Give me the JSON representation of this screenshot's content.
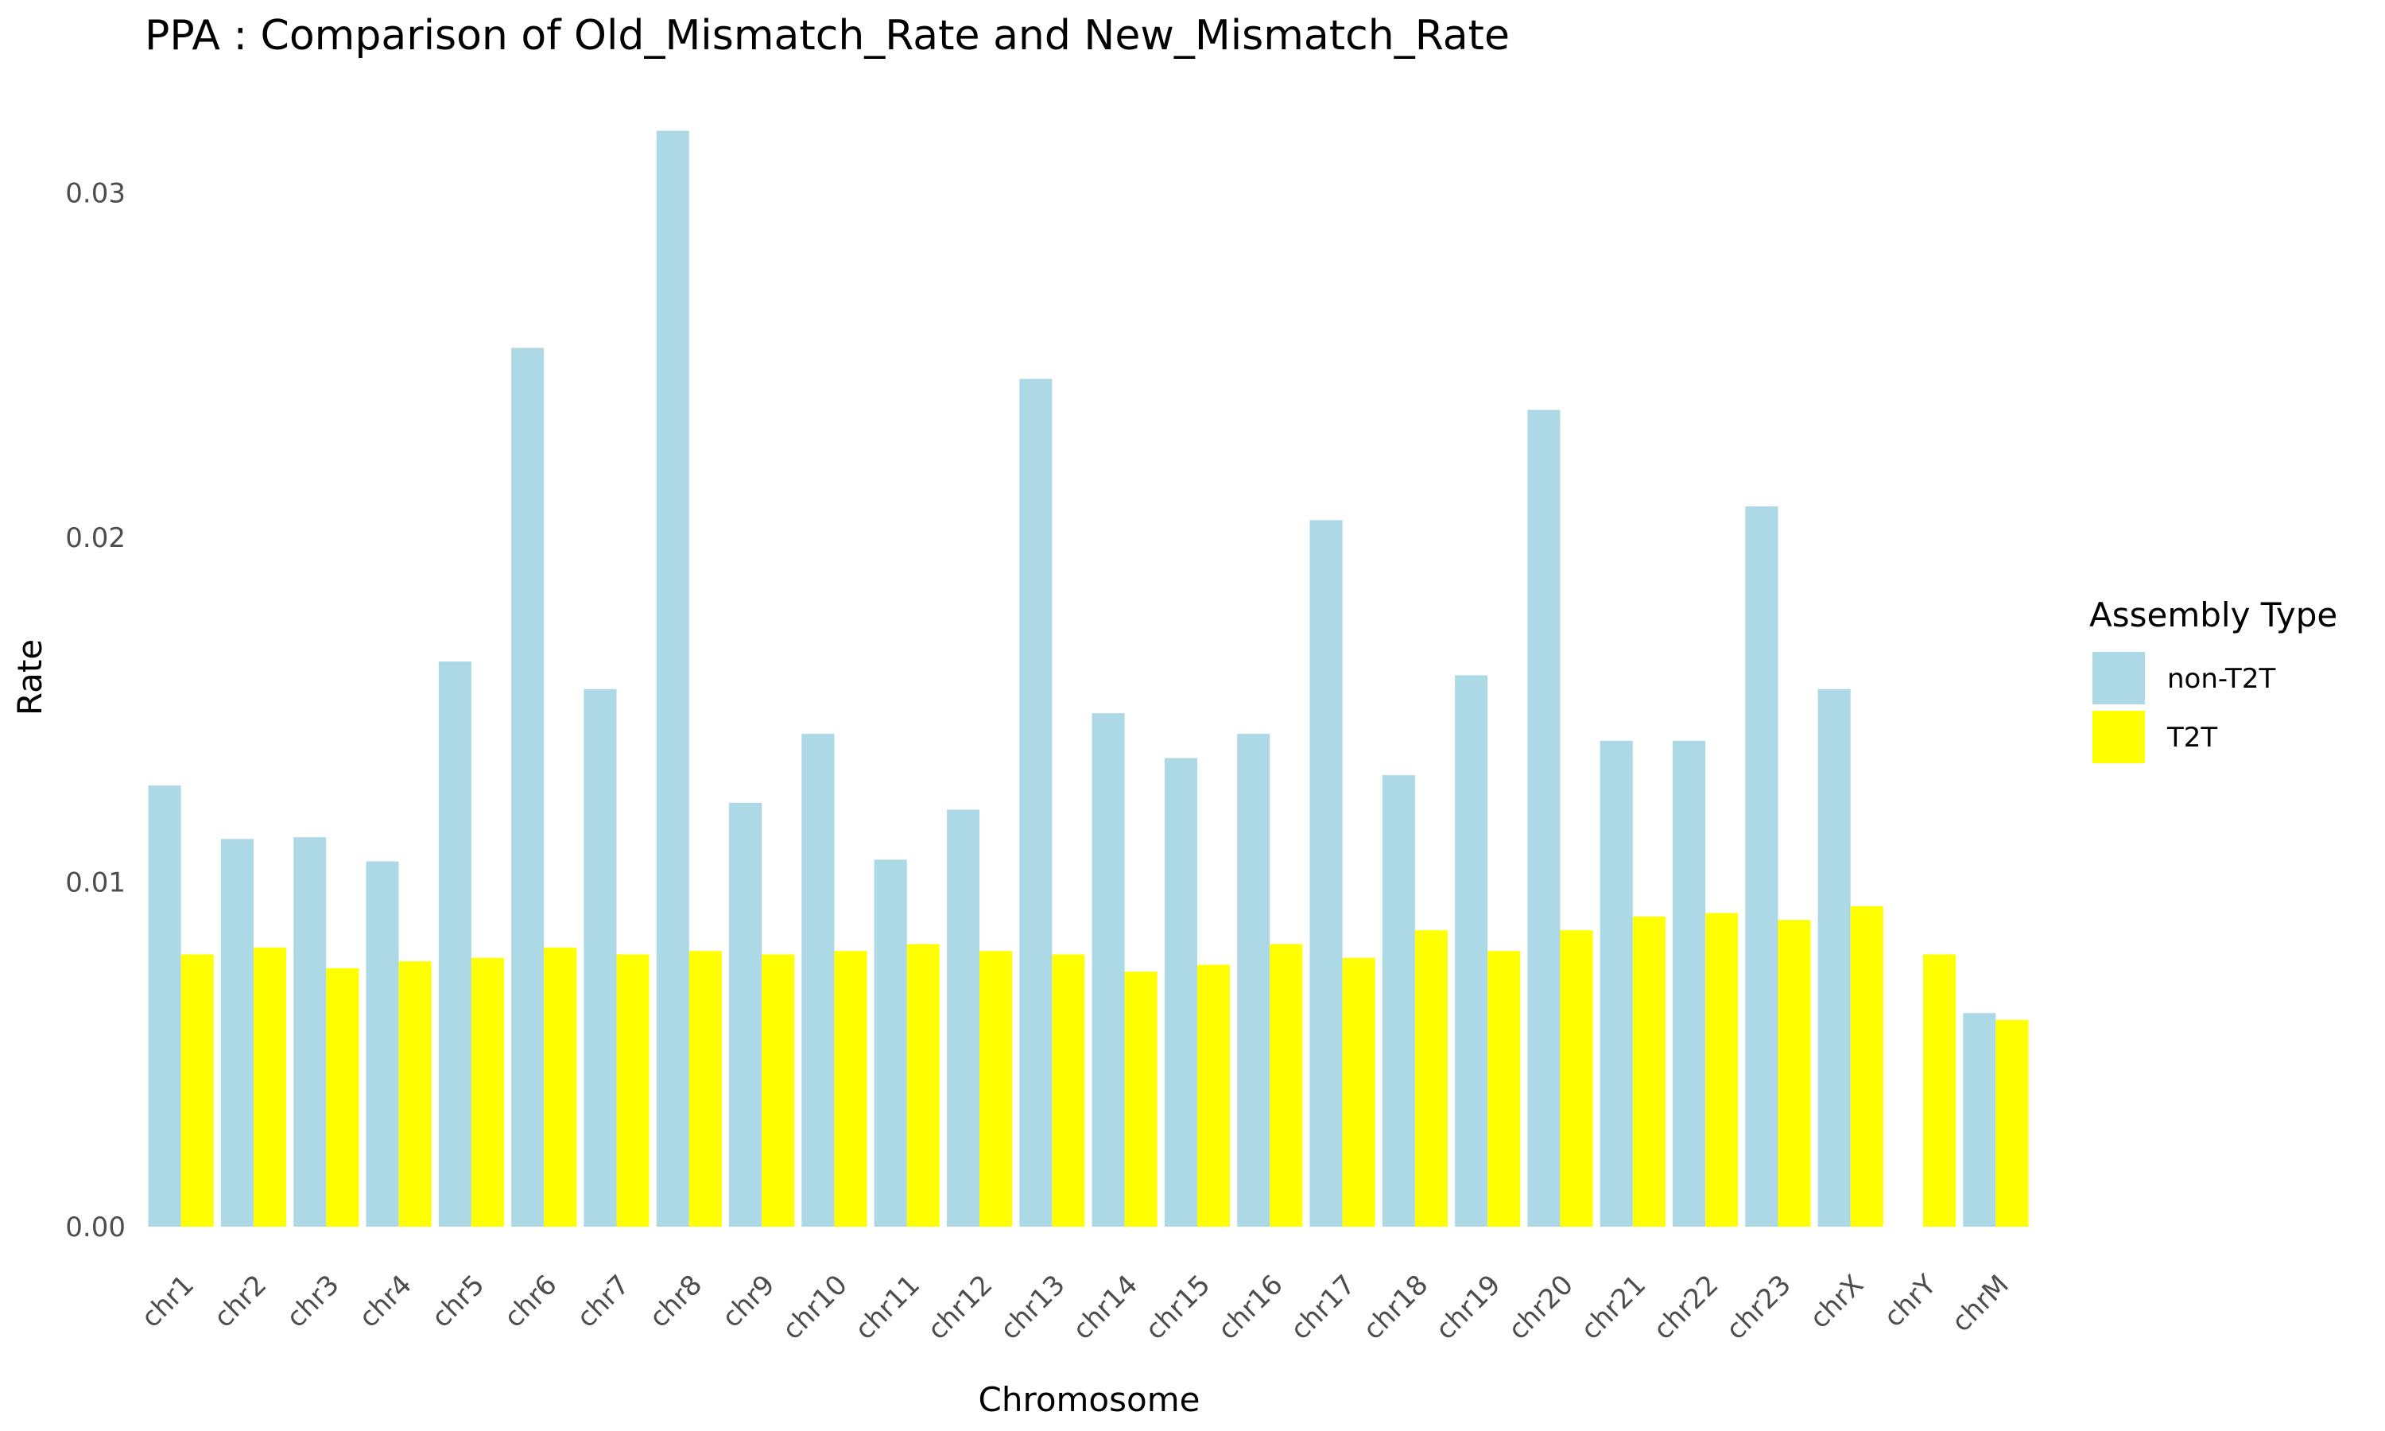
{
  "chart_data": {
    "type": "bar",
    "title": "PPA : Comparison of Old_Mismatch_Rate and New_Mismatch_Rate",
    "xlabel": "Chromosome",
    "ylabel": "Rate",
    "ylim": [
      0,
      0.032
    ],
    "yticks": [
      0,
      0.01,
      0.02,
      0.03
    ],
    "ytick_labels": [
      "0.00",
      "0.01",
      "0.02",
      "0.03"
    ],
    "grid": false,
    "legend_position": "right",
    "legend_title": "Assembly Type",
    "categories": [
      "chr1",
      "chr2",
      "chr3",
      "chr4",
      "chr5",
      "chr6",
      "chr7",
      "chr8",
      "chr9",
      "chr10",
      "chr11",
      "chr12",
      "chr13",
      "chr14",
      "chr15",
      "chr16",
      "chr17",
      "chr18",
      "chr19",
      "chr20",
      "chr21",
      "chr22",
      "chr23",
      "chrX",
      "chrY",
      "chrM"
    ],
    "series": [
      {
        "name": "non-T2T",
        "color": "#ADD8E6",
        "values": [
          0.0128,
          0.01125,
          0.0113,
          0.0106,
          0.0164,
          0.0255,
          0.0156,
          0.0318,
          0.0123,
          0.0143,
          0.01065,
          0.0121,
          0.0246,
          0.0149,
          0.0136,
          0.0143,
          0.0205,
          0.0131,
          0.016,
          0.0237,
          0.0141,
          0.0141,
          0.0209,
          0.0156,
          null,
          0.0062
        ]
      },
      {
        "name": "T2T",
        "color": "#FFFF00",
        "values": [
          0.0079,
          0.0081,
          0.0075,
          0.0077,
          0.0078,
          0.0081,
          0.0079,
          0.008,
          0.0079,
          0.008,
          0.0082,
          0.008,
          0.0079,
          0.0074,
          0.0076,
          0.0082,
          0.0078,
          0.0086,
          0.008,
          0.0086,
          0.009,
          0.0091,
          0.0089,
          0.0093,
          0.0079,
          0.006
        ]
      }
    ]
  }
}
